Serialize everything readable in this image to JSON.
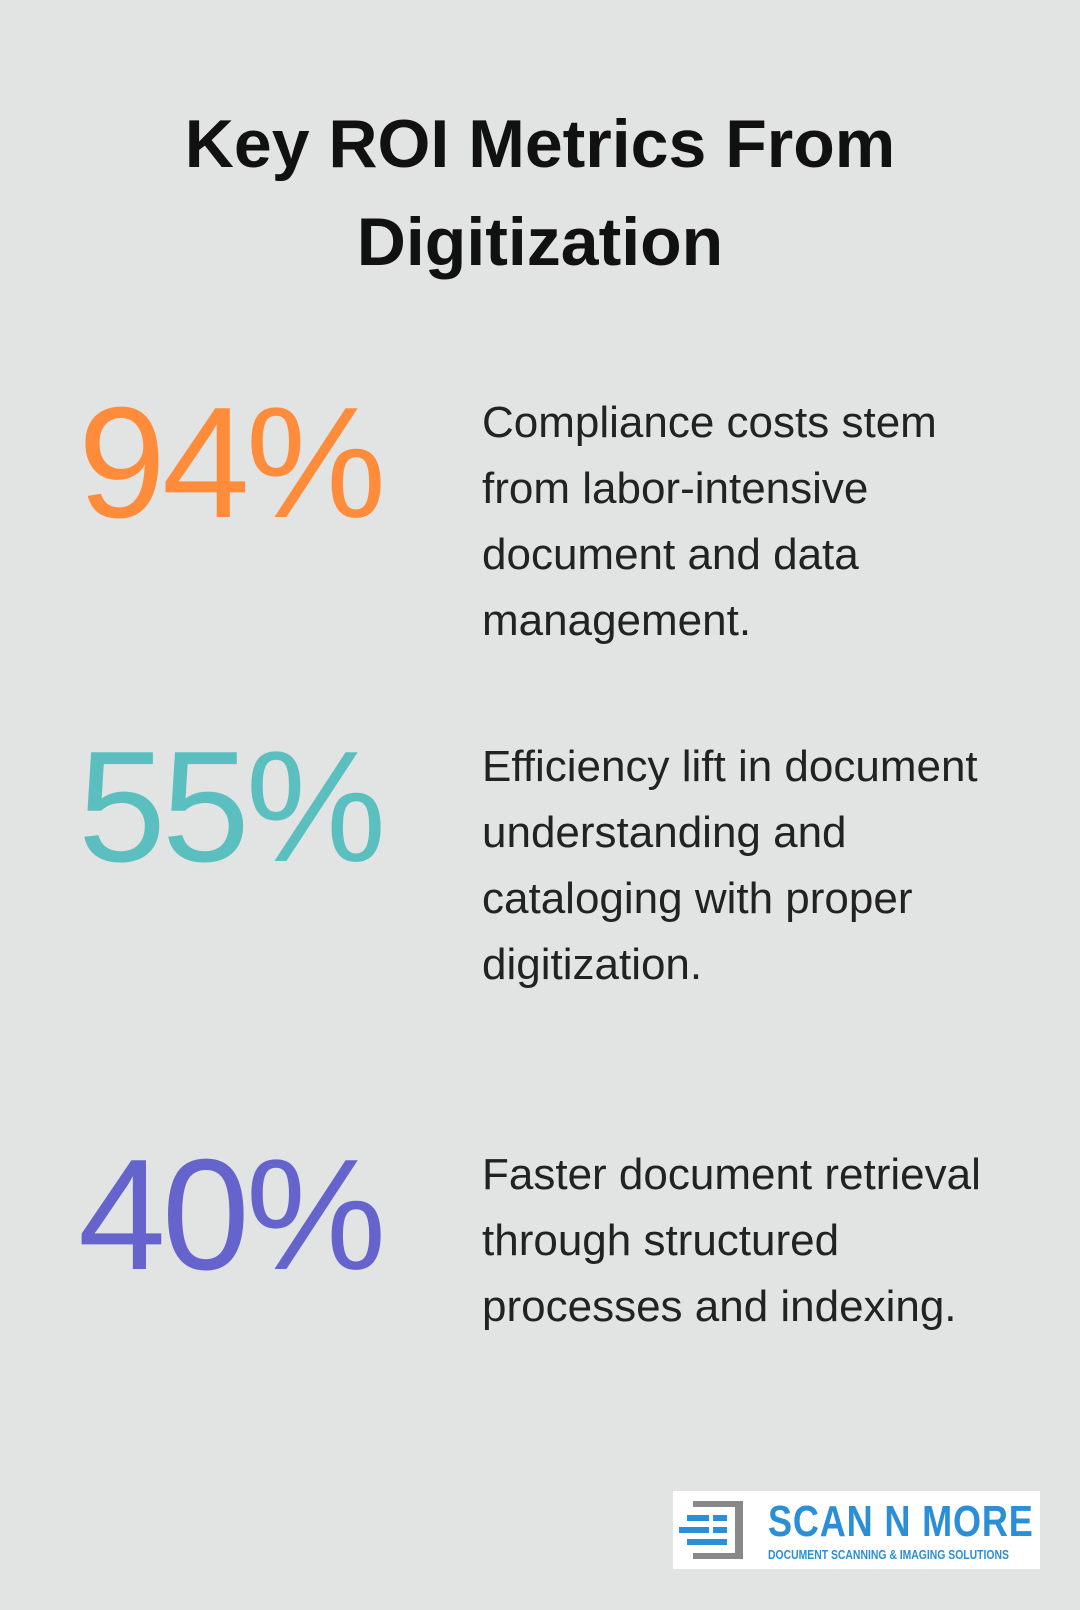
{
  "header": {
    "title": "Key ROI Metrics From Digitization"
  },
  "stats": [
    {
      "value": "94%",
      "color": "#ff8c3a",
      "text": "Compliance costs stem from labor-intensive document and data management."
    },
    {
      "value": "55%",
      "color": "#5bbfc0",
      "text": "Efficiency lift in document understanding and cataloging with proper digitization."
    },
    {
      "value": "40%",
      "color": "#6464cc",
      "text": "Faster document retrieval through structured processes and indexing."
    }
  ],
  "logo": {
    "name": "SCAN N MORE",
    "tagline": "DOCUMENT SCANNING & IMAGING SOLUTIONS"
  }
}
